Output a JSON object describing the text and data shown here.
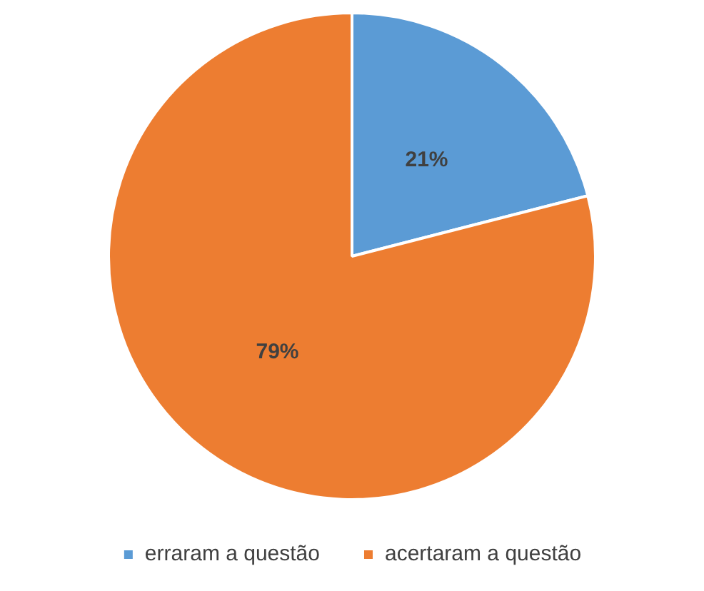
{
  "chart_data": {
    "type": "pie",
    "categories": [
      "erraram a questão",
      "acertaram a questão"
    ],
    "values": [
      21,
      79
    ],
    "colors": [
      "#5b9bd5",
      "#ed7d31"
    ],
    "value_labels": [
      "21%",
      "79%"
    ],
    "legend": "bottom"
  }
}
